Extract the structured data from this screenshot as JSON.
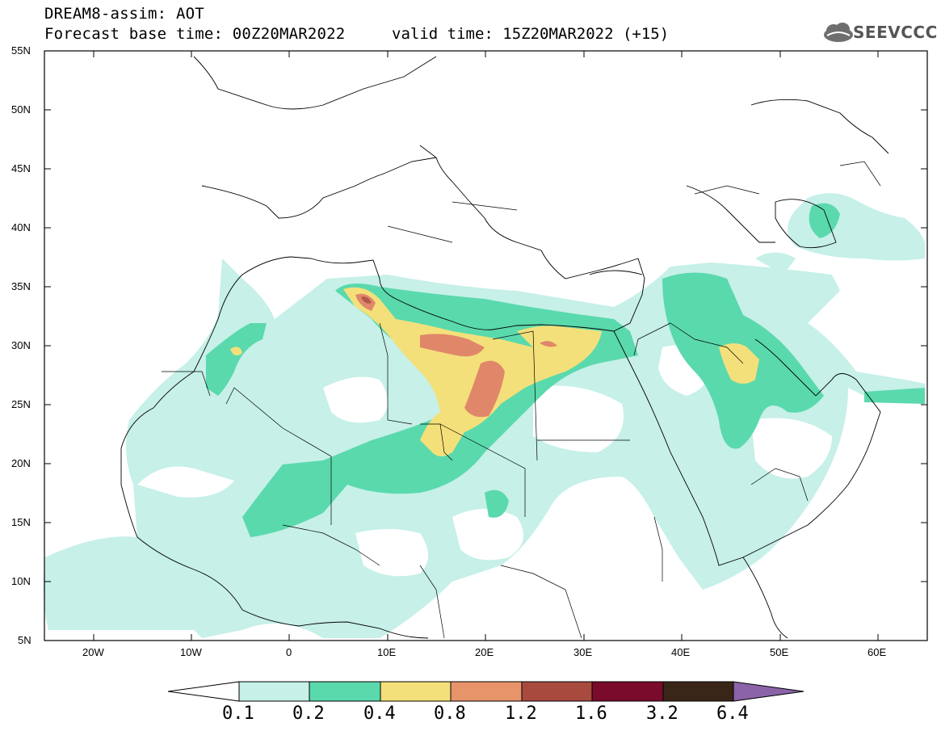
{
  "header": {
    "line1": "DREAM8-assim: AOT",
    "line2_left": "Forecast base time: 00Z20MAR2022",
    "line2_right": "valid time: 15Z20MAR2022 (+15)",
    "logo_text": "SEEVCCC"
  },
  "axes": {
    "lat_labels": [
      "55N",
      "50N",
      "45N",
      "40N",
      "35N",
      "30N",
      "25N",
      "20N",
      "15N",
      "10N",
      "5N"
    ],
    "lon_labels": [
      "20W",
      "10W",
      "0",
      "10E",
      "20E",
      "30E",
      "40E",
      "50E",
      "60E"
    ]
  },
  "colorbar": {
    "labels": [
      "0.1",
      "0.2",
      "0.4",
      "0.8",
      "1.2",
      "1.6",
      "3.2",
      "6.4"
    ],
    "colors": [
      "#ffffff",
      "#c6f0e8",
      "#5ad9ad",
      "#f4e07a",
      "#e8946a",
      "#a84a3e",
      "#7a0b2a",
      "#3a2618",
      "#8a63a8"
    ]
  },
  "colors": {
    "level1": "#c6f0e8",
    "level2": "#5ad9ad",
    "level3": "#f4e07a",
    "level4": "#e0876a",
    "level5": "#b0594b"
  }
}
